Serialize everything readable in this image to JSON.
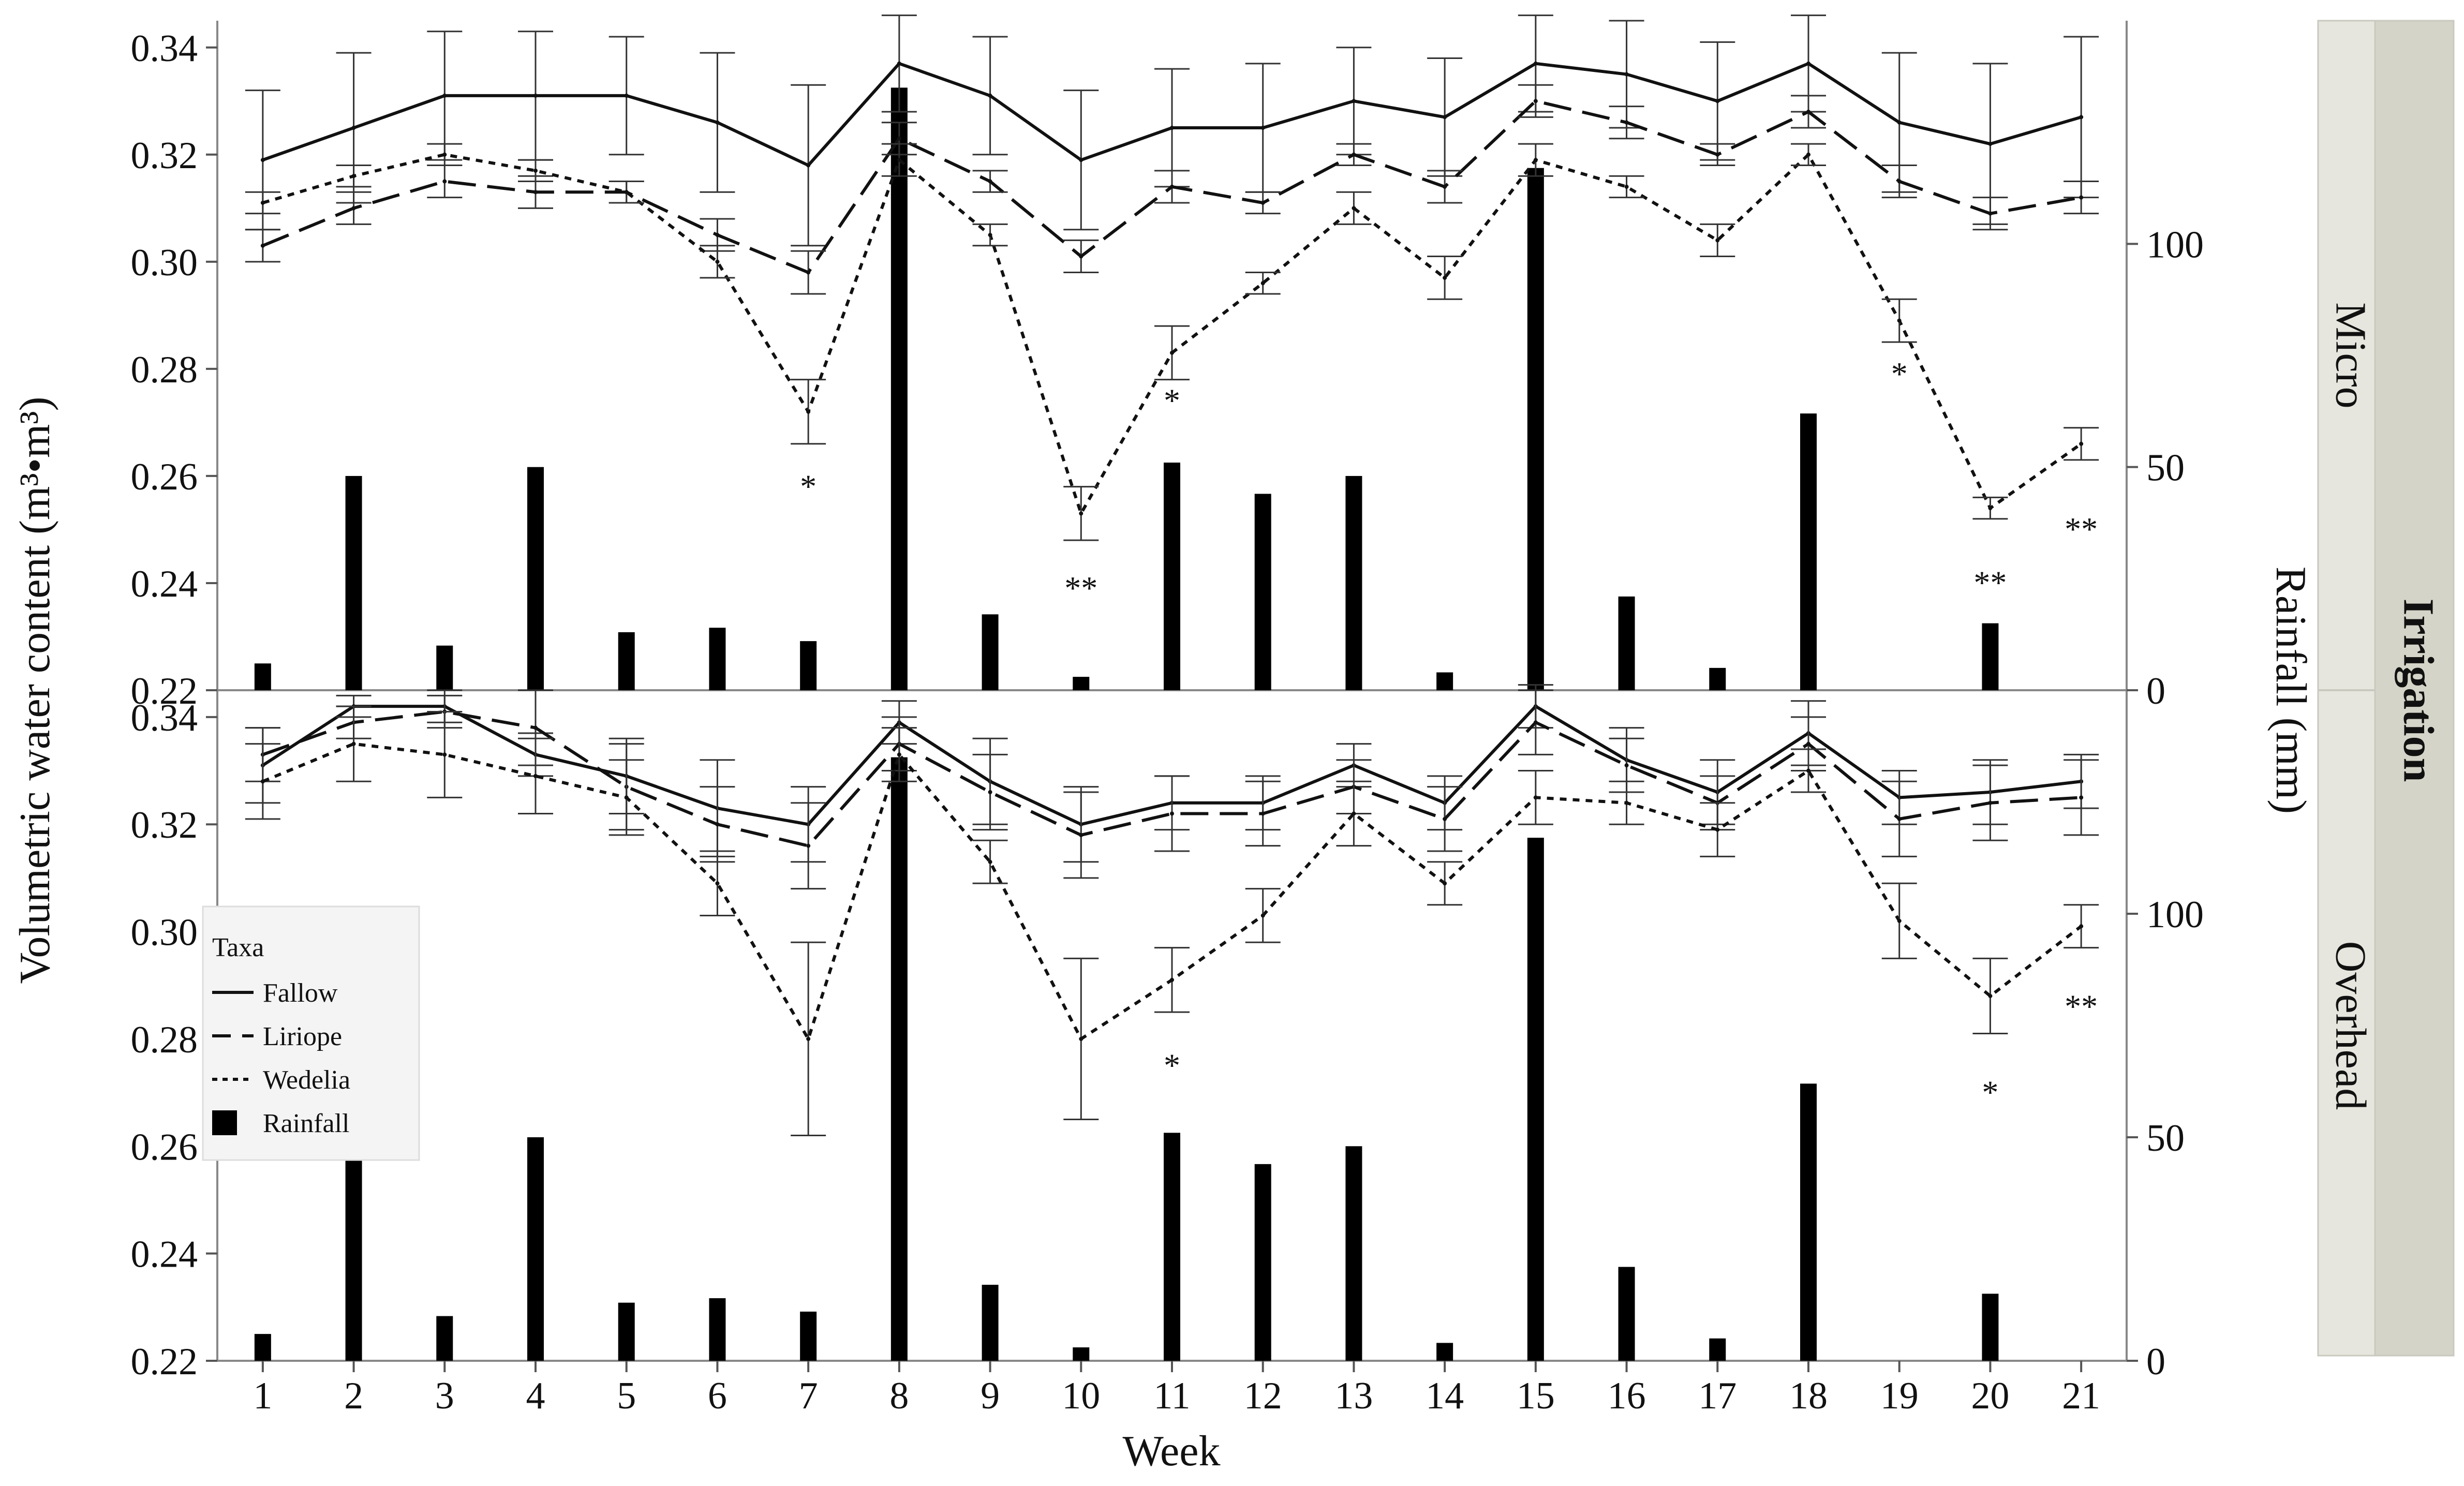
{
  "chart_data": {
    "type": "bar+line",
    "xlabel": "Week",
    "ylabel": "Volumetric water content (m³•m³)",
    "y2label": "Rainfall (mm)",
    "facet_label": "Irrigation",
    "weeks": [
      "1",
      "2",
      "3",
      "4",
      "5",
      "6",
      "7",
      "8",
      "9",
      "10",
      "11",
      "12",
      "13",
      "14",
      "15",
      "16",
      "17",
      "18",
      "19",
      "20",
      "21"
    ],
    "ylim": [
      0.22,
      0.345
    ],
    "yticks": [
      "0.22",
      "0.24",
      "0.26",
      "0.28",
      "0.30",
      "0.32",
      "0.34"
    ],
    "y2lim": [
      0,
      150
    ],
    "y2ticks": [
      "0",
      "50",
      "100"
    ],
    "legend": {
      "title": "Taxa",
      "items": [
        {
          "label": "Fallow",
          "style": "solid"
        },
        {
          "label": "Liriope",
          "style": "dashed"
        },
        {
          "label": "Wedelia",
          "style": "dotted"
        },
        {
          "label": "Rainfall",
          "style": "bar"
        }
      ]
    },
    "rainfall": [
      6,
      48,
      10,
      50,
      13,
      14,
      11,
      135,
      17,
      3,
      51,
      44,
      48,
      4,
      117,
      21,
      5,
      62,
      0,
      15,
      0
    ],
    "panels": [
      {
        "name": "Micro",
        "series": [
          {
            "name": "Fallow",
            "values": [
              0.319,
              0.325,
              0.331,
              0.331,
              0.331,
              0.326,
              0.318,
              0.337,
              0.331,
              0.319,
              0.325,
              0.325,
              0.33,
              0.327,
              0.337,
              0.335,
              0.33,
              0.337,
              0.326,
              0.322,
              0.327
            ],
            "err": [
              0.013,
              0.014,
              0.012,
              0.012,
              0.011,
              0.013,
              0.015,
              0.009,
              0.011,
              0.013,
              0.011,
              0.012,
              0.01,
              0.011,
              0.009,
              0.01,
              0.011,
              0.009,
              0.013,
              0.015,
              0.015
            ]
          },
          {
            "name": "Liriope",
            "values": [
              0.303,
              0.31,
              0.315,
              0.313,
              0.313,
              0.305,
              0.298,
              0.323,
              0.315,
              0.301,
              0.314,
              0.311,
              0.32,
              0.314,
              0.33,
              0.326,
              0.32,
              0.328,
              0.315,
              0.309,
              0.312
            ],
            "err": [
              0.003,
              0.003,
              0.003,
              0.003,
              0.002,
              0.003,
              0.004,
              0.003,
              0.002,
              0.003,
              0.003,
              0.002,
              0.002,
              0.003,
              0.003,
              0.003,
              0.002,
              0.003,
              0.003,
              0.003,
              0.003
            ]
          },
          {
            "name": "Wedelia",
            "values": [
              0.311,
              0.316,
              0.32,
              0.317,
              0.313,
              0.3,
              0.272,
              0.319,
              0.305,
              0.253,
              0.283,
              0.296,
              0.31,
              0.297,
              0.319,
              0.314,
              0.304,
              0.32,
              0.289,
              0.254,
              0.266
            ],
            "err": [
              0.002,
              0.002,
              0.002,
              0.002,
              0.002,
              0.003,
              0.006,
              0.003,
              0.002,
              0.005,
              0.005,
              0.002,
              0.003,
              0.004,
              0.003,
              0.002,
              0.003,
              0.002,
              0.004,
              0.002,
              0.003
            ]
          }
        ],
        "annotations": [
          {
            "week": "7",
            "text": "*",
            "y": 0.256
          },
          {
            "week": "10",
            "text": "**",
            "y": 0.237
          },
          {
            "week": "11",
            "text": "*",
            "y": 0.272
          },
          {
            "week": "19",
            "text": "*",
            "y": 0.277
          },
          {
            "week": "20",
            "text": "**",
            "y": 0.238
          },
          {
            "week": "21",
            "text": "**",
            "y": 0.248
          }
        ]
      },
      {
        "name": "Overhead",
        "series": [
          {
            "name": "Fallow",
            "values": [
              0.331,
              0.342,
              0.342,
              0.333,
              0.329,
              0.323,
              0.32,
              0.339,
              0.328,
              0.32,
              0.324,
              0.324,
              0.331,
              0.324,
              0.342,
              0.332,
              0.326,
              0.337,
              0.325,
              0.326,
              0.328
            ],
            "err": [
              0.007,
              0.002,
              0.003,
              0.004,
              0.007,
              0.009,
              0.007,
              0.004,
              0.008,
              0.007,
              0.005,
              0.005,
              0.004,
              0.005,
              0.004,
              0.006,
              0.006,
              0.006,
              0.005,
              0.006,
              0.005
            ]
          },
          {
            "name": "Liriope",
            "values": [
              0.333,
              0.339,
              0.341,
              0.338,
              0.327,
              0.32,
              0.316,
              0.335,
              0.326,
              0.318,
              0.322,
              0.322,
              0.327,
              0.321,
              0.339,
              0.331,
              0.324,
              0.335,
              0.321,
              0.324,
              0.325
            ],
            "err": [
              0.005,
              0.003,
              0.003,
              0.007,
              0.008,
              0.007,
              0.008,
              0.005,
              0.007,
              0.008,
              0.007,
              0.006,
              0.005,
              0.006,
              0.006,
              0.005,
              0.005,
              0.005,
              0.007,
              0.007,
              0.007
            ]
          },
          {
            "name": "Wedelia",
            "values": [
              0.328,
              0.335,
              0.333,
              0.329,
              0.325,
              0.309,
              0.28,
              0.333,
              0.313,
              0.28,
              0.291,
              0.303,
              0.322,
              0.309,
              0.325,
              0.324,
              0.319,
              0.33,
              0.302,
              0.288,
              0.301
            ],
            "err": [
              0.007,
              0.007,
              0.008,
              0.007,
              0.007,
              0.006,
              0.018,
              0.005,
              0.004,
              0.015,
              0.006,
              0.005,
              0.006,
              0.004,
              0.005,
              0.004,
              0.005,
              0.004,
              0.007,
              0.007,
              0.004
            ]
          }
        ],
        "annotations": [
          {
            "week": "11",
            "text": "*",
            "y": 0.273
          },
          {
            "week": "20",
            "text": "*",
            "y": 0.268
          },
          {
            "week": "21",
            "text": "**",
            "y": 0.284
          }
        ]
      }
    ]
  }
}
